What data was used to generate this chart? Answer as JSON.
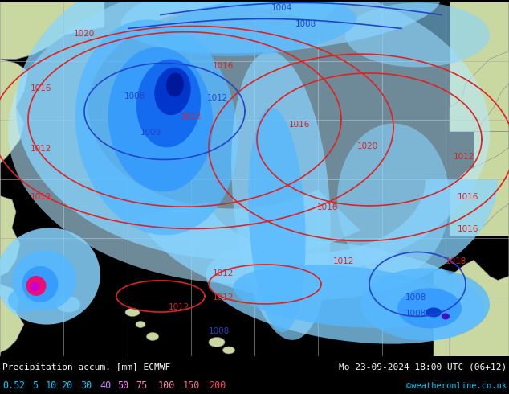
{
  "title_left": "Precipitation accum. [mm] ECMWF",
  "title_right": "Mo 23-09-2024 18:00 UTC (06+12)",
  "credit": "©weatheronline.co.uk",
  "legend_values": [
    "0.5",
    "2",
    "5",
    "10",
    "20",
    "30",
    "40",
    "50",
    "75",
    "100",
    "150",
    "200"
  ],
  "legend_text_colors": [
    "#00ccff",
    "#00ccff",
    "#00ccff",
    "#00ccff",
    "#00ccff",
    "#00ccff",
    "#cc88ff",
    "#ff88ff",
    "#ff88cc",
    "#ff88aa",
    "#ff6688",
    "#ff4466"
  ],
  "bg_land_color": "#c8d8a0",
  "bg_ocean_color": "#e8e8e8",
  "grid_color": "#aaaaaa",
  "isobar_red": "#dd2222",
  "isobar_blue": "#2244cc",
  "bottom_bg": "#000000",
  "text_white": "#ffffff",
  "credit_color": "#00ccff",
  "figsize": [
    6.34,
    4.9
  ],
  "dpi": 100,
  "precip_colors": {
    "very_light": "#b8e8ff",
    "light": "#88d4ff",
    "medium_light": "#55b8ff",
    "medium": "#3399ff",
    "medium_dark": "#1166ee",
    "dark": "#0033cc",
    "very_dark": "#001899",
    "purple": "#4400bb",
    "magenta": "#cc00cc",
    "pink": "#ff00aa",
    "hot_pink": "#ff0066",
    "red": "#ff0000"
  }
}
